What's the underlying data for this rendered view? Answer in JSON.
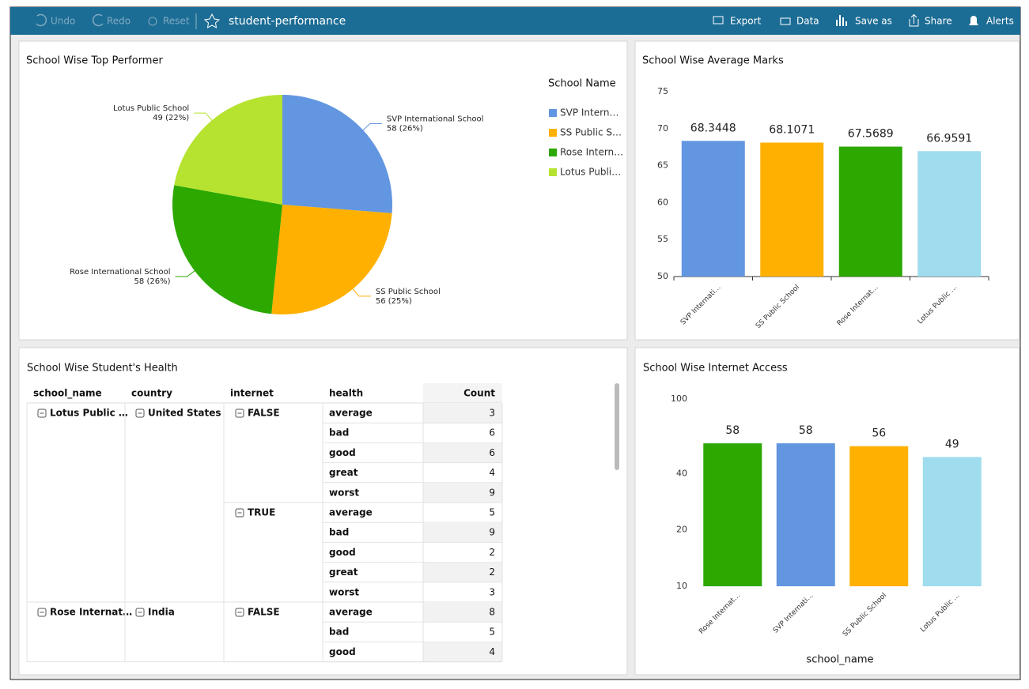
{
  "toolbar": {
    "undo": "Undo",
    "redo": "Redo",
    "reset": "Reset",
    "title": "student-performance",
    "export": "Export",
    "data": "Data",
    "save_as": "Save as",
    "share": "Share",
    "alerts": "Alerts"
  },
  "chart_data": [
    {
      "type": "pie",
      "title": "School Wise Top Performer",
      "categories": [
        "SVP International School",
        "SS Public School",
        "Rose International School",
        "Lotus Public School"
      ],
      "values": [
        58,
        56,
        58,
        49
      ],
      "value_labels": [
        "58 (26%)",
        "56 (25%)",
        "58 (26%)",
        "49 (22%)"
      ],
      "colors": [
        "#6296e0",
        "#ffb000",
        "#2ca800",
        "#b5e32f"
      ],
      "legend_title": "School Name",
      "legend": [
        "SVP Intern…",
        "SS Public S…",
        "Rose Intern…",
        "Lotus Publi…"
      ]
    },
    {
      "type": "bar",
      "title": "School Wise Average Marks",
      "categories": [
        "SVP Internati…",
        "SS Public School",
        "Rose Internat…",
        "Lotus Public …"
      ],
      "values": [
        68.3448,
        68.1071,
        67.5689,
        66.9591
      ],
      "colors": [
        "#6296e0",
        "#ffb000",
        "#2ca800",
        "#9edcee"
      ],
      "ylim": [
        50,
        75
      ],
      "yticks": [
        50,
        55,
        60,
        65,
        70,
        75
      ],
      "log": false,
      "axis_line": true
    },
    {
      "type": "bar",
      "title": "School Wise Internet Access",
      "xlabel": "school_name",
      "categories": [
        "Rose Internat…",
        "SVP Internati…",
        "SS Public School",
        "Lotus Public …"
      ],
      "values": [
        58,
        58,
        56,
        49
      ],
      "colors": [
        "#2ca800",
        "#6296e0",
        "#ffb000",
        "#9edcee"
      ],
      "ylim": [
        10,
        100
      ],
      "yticks": [
        10,
        20,
        40,
        100
      ],
      "log": true,
      "axis_line": false
    }
  ],
  "table": {
    "title": "School Wise Student's Health",
    "headers": [
      "school_name",
      "country",
      "internet",
      "health",
      "Count"
    ],
    "groups": [
      {
        "school": "Lotus Public …",
        "countries": [
          {
            "country": "United States",
            "internet": [
              {
                "value": "FALSE",
                "rows": [
                  {
                    "health": "average",
                    "count": 3
                  },
                  {
                    "health": "bad",
                    "count": 6
                  },
                  {
                    "health": "good",
                    "count": 6
                  },
                  {
                    "health": "great",
                    "count": 4
                  },
                  {
                    "health": "worst",
                    "count": 9
                  }
                ]
              },
              {
                "value": "TRUE",
                "rows": [
                  {
                    "health": "average",
                    "count": 5
                  },
                  {
                    "health": "bad",
                    "count": 9
                  },
                  {
                    "health": "good",
                    "count": 2
                  },
                  {
                    "health": "great",
                    "count": 2
                  },
                  {
                    "health": "worst",
                    "count": 3
                  }
                ]
              }
            ]
          }
        ]
      },
      {
        "school": "Rose Internat…",
        "countries": [
          {
            "country": "India",
            "internet": [
              {
                "value": "FALSE",
                "rows": [
                  {
                    "health": "average",
                    "count": 8
                  },
                  {
                    "health": "bad",
                    "count": 5
                  },
                  {
                    "health": "good",
                    "count": 4
                  }
                ]
              }
            ]
          }
        ]
      }
    ]
  }
}
